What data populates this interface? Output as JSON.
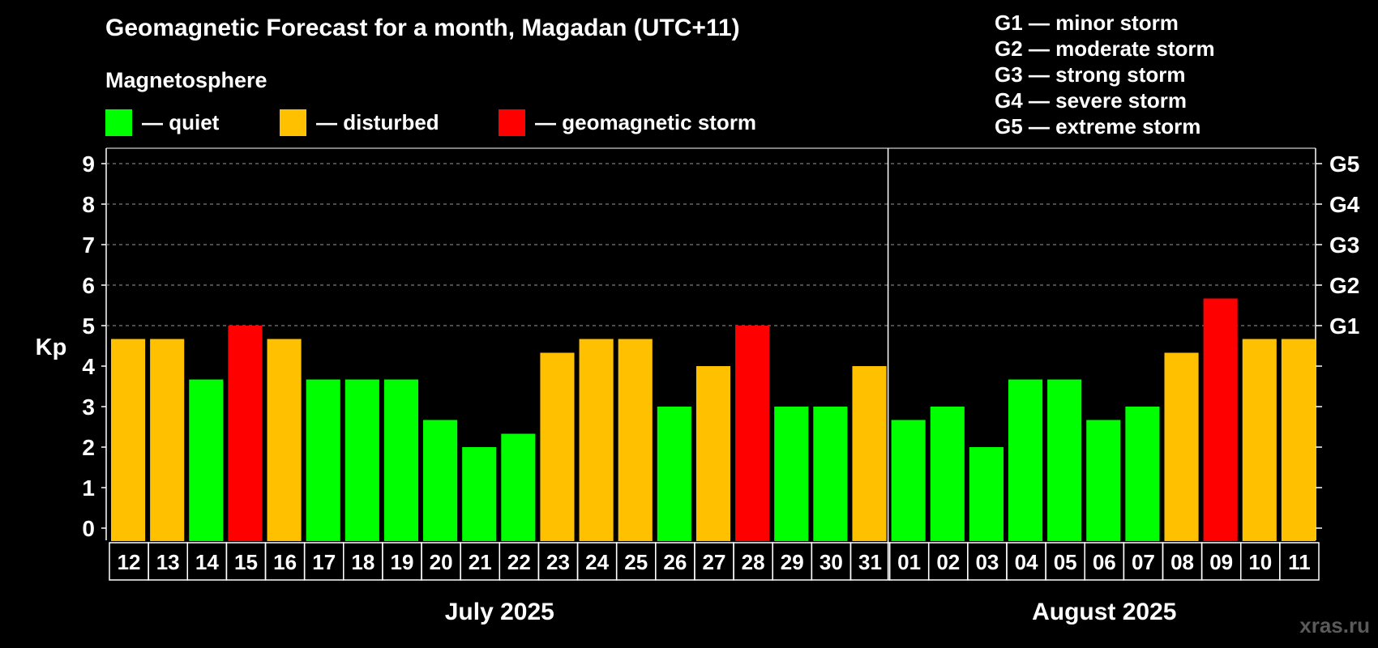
{
  "chart_data": {
    "type": "bar",
    "title": "Geomagnetic Forecast for a month, Magadan (UTC+11)",
    "subtitle": "Magnetosphere",
    "ylabel": "Kp",
    "ylim": [
      0,
      9
    ],
    "yticks": [
      "0",
      "1",
      "2",
      "3",
      "4",
      "5",
      "6",
      "7",
      "8",
      "9"
    ],
    "g_levels": [
      {
        "label": "G1",
        "kp": 5
      },
      {
        "label": "G2",
        "kp": 6
      },
      {
        "label": "G3",
        "kp": 7
      },
      {
        "label": "G4",
        "kp": 8
      },
      {
        "label": "G5",
        "kp": 9
      }
    ],
    "categories": [
      "12",
      "13",
      "14",
      "15",
      "16",
      "17",
      "18",
      "19",
      "20",
      "21",
      "22",
      "23",
      "24",
      "25",
      "26",
      "27",
      "28",
      "29",
      "30",
      "31",
      "01",
      "02",
      "03",
      "04",
      "05",
      "06",
      "07",
      "08",
      "09",
      "10",
      "11"
    ],
    "values": [
      4.67,
      4.67,
      3.67,
      5,
      4.67,
      3.67,
      3.67,
      3.67,
      2.67,
      2,
      2.33,
      4.33,
      4.67,
      4.67,
      3,
      4,
      5,
      3,
      3,
      4,
      2.67,
      3,
      2,
      3.67,
      3.67,
      2.67,
      3,
      4.33,
      5.67,
      4.67,
      4.67
    ],
    "status": [
      "disturbed",
      "disturbed",
      "quiet",
      "storm",
      "disturbed",
      "quiet",
      "quiet",
      "quiet",
      "quiet",
      "quiet",
      "quiet",
      "disturbed",
      "disturbed",
      "disturbed",
      "quiet",
      "disturbed",
      "storm",
      "quiet",
      "quiet",
      "disturbed",
      "quiet",
      "quiet",
      "quiet",
      "quiet",
      "quiet",
      "quiet",
      "quiet",
      "disturbed",
      "storm",
      "disturbed",
      "disturbed"
    ],
    "months": [
      {
        "label": "July 2025",
        "count": 20
      },
      {
        "label": "August 2025",
        "count": 11
      }
    ]
  },
  "legend": {
    "quiet": {
      "label": "— quiet",
      "color": "#00ff00"
    },
    "disturbed": {
      "label": "— disturbed",
      "color": "#ffc000"
    },
    "storm": {
      "label": "— geomagnetic storm",
      "color": "#ff0000"
    }
  },
  "g_legend": [
    "G1 — minor storm",
    "G2 — moderate storm",
    "G3 — strong storm",
    "G4 — severe storm",
    "G5 — extreme storm"
  ],
  "watermark": "xras.ru"
}
